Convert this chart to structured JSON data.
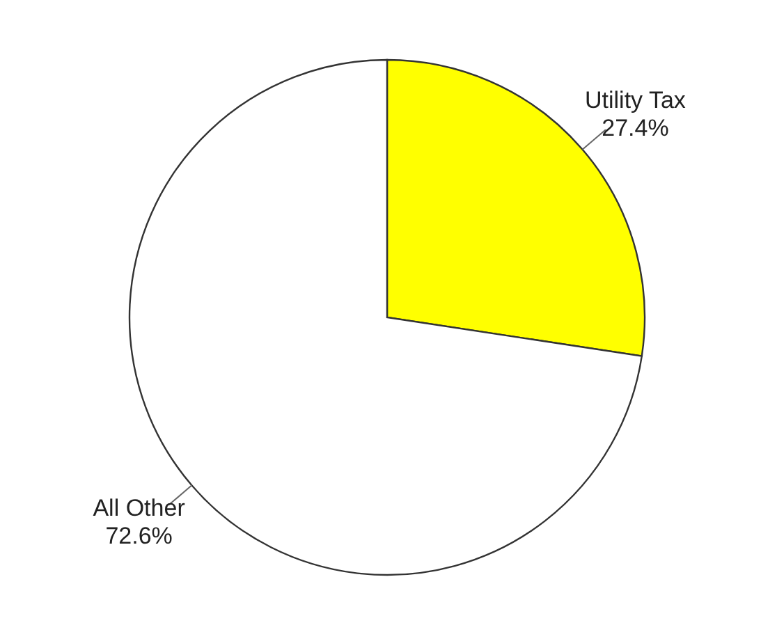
{
  "chart_data": {
    "type": "pie",
    "categories": [
      "Utility Tax",
      "All Other"
    ],
    "values": [
      27.4,
      72.6
    ],
    "colors": [
      "#ffff00",
      "#ffffff"
    ],
    "value_labels": [
      "27.4%",
      "72.6%"
    ]
  }
}
